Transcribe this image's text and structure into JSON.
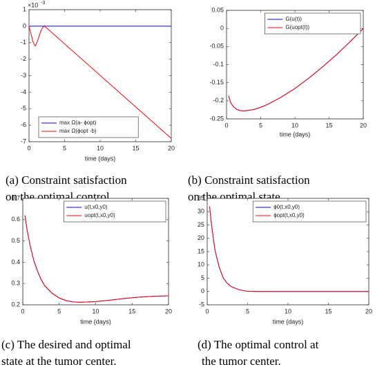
{
  "chart_data": [
    {
      "type": "line",
      "xlabel": "time (days)",
      "xlim": [
        0,
        20
      ],
      "xticks": [
        0,
        5,
        10,
        15,
        20
      ],
      "ylim": [
        -7,
        1
      ],
      "yticks": [
        -7,
        -6,
        -5,
        -4,
        -3,
        -2,
        -1,
        0,
        1
      ],
      "y_multiplier_base": "×10",
      "y_multiplier_exp": "-3",
      "legend": "lower left",
      "caption": [
        "(a) Constraint satisfaction",
        "on the optimal control."
      ],
      "series": [
        {
          "name": "max Ω(a- ϕopt)",
          "color": "#0000ff",
          "x": [
            0,
            20
          ],
          "values": [
            0,
            0
          ]
        },
        {
          "name": "max Ω(ϕopt -b)",
          "color": "#ff0000",
          "x": [
            0,
            0.3,
            0.6,
            0.9,
            1.2,
            1.5,
            1.8,
            2.1,
            2.4,
            20
          ],
          "values": [
            0,
            -0.5,
            -1.0,
            -1.2,
            -0.9,
            -0.5,
            -0.15,
            0,
            -0.08,
            -6.8
          ]
        }
      ]
    },
    {
      "type": "line",
      "xlabel": "time (days)",
      "xlim": [
        0,
        20
      ],
      "xticks": [
        0,
        5,
        10,
        15,
        20
      ],
      "ylim": [
        -0.25,
        0.05
      ],
      "yticks": [
        -0.25,
        -0.2,
        -0.15,
        -0.1,
        -0.05,
        0,
        0.05
      ],
      "legend": "upper right",
      "caption": [
        "(b) Constraint satisfaction",
        "on the optimal state."
      ],
      "series": [
        {
          "name": "G(u(t))",
          "color": "#0000ff",
          "x": [
            0.3,
            0.6,
            1,
            1.5,
            2,
            2.5,
            3,
            4,
            5,
            6,
            8,
            10,
            12,
            14,
            16,
            18,
            20
          ],
          "values": [
            -0.186,
            -0.205,
            -0.216,
            -0.224,
            -0.227,
            -0.228,
            -0.227,
            -0.224,
            -0.218,
            -0.21,
            -0.19,
            -0.166,
            -0.138,
            -0.107,
            -0.074,
            -0.038,
            0
          ]
        },
        {
          "name": "G(uopt(t))",
          "color": "#ff0000",
          "x": [
            0.3,
            0.6,
            1,
            1.5,
            2,
            2.5,
            3,
            4,
            5,
            6,
            8,
            10,
            12,
            14,
            16,
            18,
            20
          ],
          "values": [
            -0.186,
            -0.205,
            -0.216,
            -0.224,
            -0.227,
            -0.228,
            -0.227,
            -0.224,
            -0.218,
            -0.21,
            -0.19,
            -0.166,
            -0.138,
            -0.107,
            -0.074,
            -0.038,
            0
          ]
        }
      ]
    },
    {
      "type": "line",
      "xlabel": "time (days)",
      "xlim": [
        0,
        20
      ],
      "xticks": [
        0,
        5,
        10,
        15,
        20
      ],
      "ylim": [
        0.2,
        0.7
      ],
      "yticks": [
        0.2,
        0.3,
        0.4,
        0.5,
        0.6,
        0.7
      ],
      "legend": "upper right",
      "caption": [
        "(c) The desired and optimal",
        "state at the tumor center."
      ],
      "series": [
        {
          "name": "u(t,x0,y0)",
          "color": "#0000ff",
          "x": [
            0.3,
            0.6,
            1,
            1.5,
            2,
            2.5,
            3,
            4,
            5,
            6,
            7,
            8,
            10,
            12,
            14,
            16,
            18,
            20
          ],
          "values": [
            0.62,
            0.55,
            0.48,
            0.41,
            0.36,
            0.32,
            0.29,
            0.255,
            0.232,
            0.219,
            0.213,
            0.212,
            0.215,
            0.222,
            0.23,
            0.236,
            0.24,
            0.242
          ]
        },
        {
          "name": "uopt(t,x0,y0)",
          "color": "#ff0000",
          "x": [
            0.3,
            0.6,
            1,
            1.5,
            2,
            2.5,
            3,
            4,
            5,
            6,
            7,
            8,
            10,
            12,
            14,
            16,
            18,
            20
          ],
          "values": [
            0.62,
            0.55,
            0.48,
            0.41,
            0.36,
            0.32,
            0.29,
            0.255,
            0.232,
            0.219,
            0.213,
            0.212,
            0.215,
            0.222,
            0.23,
            0.236,
            0.24,
            0.242
          ]
        }
      ]
    },
    {
      "type": "line",
      "xlabel": "time (days)",
      "xlim": [
        0,
        20
      ],
      "xticks": [
        0,
        5,
        10,
        15,
        20
      ],
      "ylim": [
        -5,
        35
      ],
      "yticks": [
        -5,
        0,
        5,
        10,
        15,
        20,
        25,
        30,
        35
      ],
      "legend": "upper right",
      "caption": [
        "(d) The optimal control at",
        "the tumor center."
      ],
      "series": [
        {
          "name": "ϕ0(t,x0,y0)",
          "color": "#0000ff",
          "x": [
            0.3,
            0.5,
            0.8,
            1,
            1.5,
            2,
            2.5,
            3,
            4,
            5,
            6,
            10,
            20
          ],
          "values": [
            32,
            26,
            19,
            15,
            9,
            5,
            3,
            1.8,
            0.6,
            0.1,
            0,
            0,
            0
          ]
        },
        {
          "name": "ϕopt(t,x0,y0)",
          "color": "#ff0000",
          "x": [
            0.3,
            0.5,
            0.8,
            1,
            1.5,
            2,
            2.5,
            3,
            4,
            5,
            6,
            10,
            20
          ],
          "values": [
            32,
            26,
            19,
            15,
            9,
            5,
            3,
            1.8,
            0.6,
            0.1,
            0,
            0,
            0
          ]
        }
      ]
    }
  ]
}
